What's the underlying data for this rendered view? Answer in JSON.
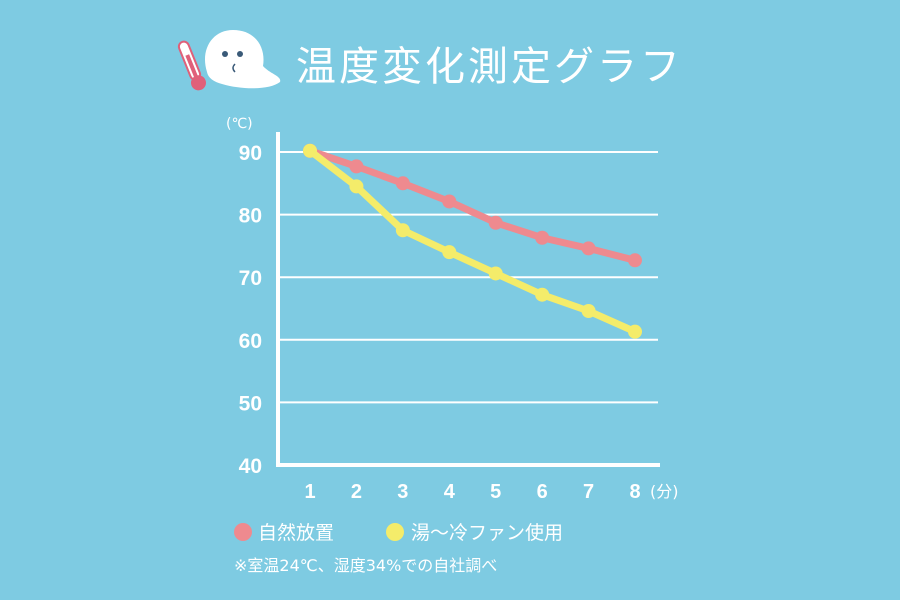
{
  "chart_data": {
    "type": "line",
    "title": "温度変化測定グラフ",
    "ylabel": "(℃)",
    "xlabel": "(分)",
    "x": [
      1,
      2,
      3,
      4,
      5,
      6,
      7,
      8
    ],
    "ylim": [
      40,
      90
    ],
    "yticks": [
      "90",
      "80",
      "70",
      "60",
      "50",
      "40"
    ],
    "xticks": [
      "1",
      "2",
      "3",
      "4",
      "5",
      "6",
      "7",
      "8"
    ],
    "grid": true,
    "legend_position": "bottom-left",
    "series": [
      {
        "name": "自然放置",
        "color": "#ee8a8f",
        "values": [
          90.2,
          87.7,
          85.0,
          82.1,
          78.7,
          76.3,
          74.6,
          72.7
        ]
      },
      {
        "name": "湯〜冷ファン使用",
        "color": "#f4ec6a",
        "values": [
          90.2,
          84.5,
          77.5,
          74.0,
          70.6,
          67.2,
          64.6,
          61.3
        ]
      }
    ],
    "note": "※室温24℃、湿度34%での自社調べ"
  },
  "colors": {
    "background": "#7ecbe2",
    "axis": "#ffffff"
  },
  "icons": [
    "thermometer-icon",
    "ghost-mascot-icon"
  ]
}
